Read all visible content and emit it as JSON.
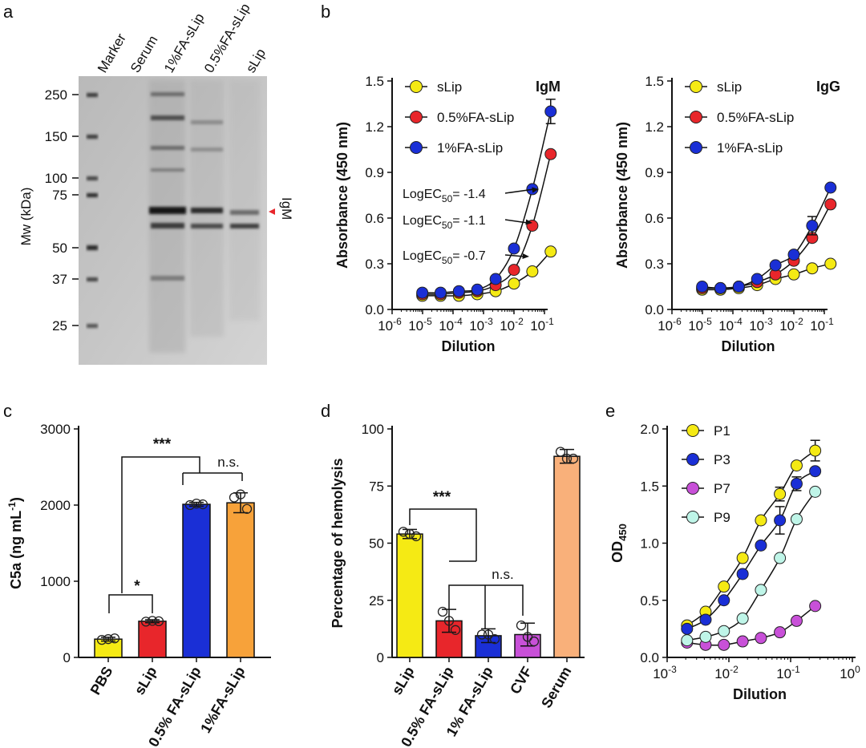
{
  "panel_labels": [
    "a",
    "b",
    "c",
    "d",
    "e"
  ],
  "chart_data": [
    {
      "panel": "a",
      "type": "gel",
      "lanes": [
        "Marker",
        "Serum",
        "1%FA-sLip",
        "0.5%FA-sLip",
        "sLip"
      ],
      "ylabel": "Mw (kDa)",
      "ticks": [
        250,
        150,
        100,
        75,
        50,
        37,
        25
      ],
      "annotation": "IgM",
      "band_kda": 69,
      "annotation_color": "#e8262b"
    },
    {
      "panel": "b-left",
      "type": "line",
      "xscale": "log",
      "xlabel": "Dilution",
      "ylabel": "Absorbance (450 nm)",
      "ylim": [
        0.0,
        1.5
      ],
      "yticks": [
        "0.0",
        "0.3",
        "0.6",
        "0.9",
        "1.2",
        "1.5"
      ],
      "xticks": [
        {
          "v": 1e-06,
          "base": "10",
          "exp": "-6"
        },
        {
          "v": 1e-05,
          "base": "10",
          "exp": "-5"
        },
        {
          "v": 0.0001,
          "base": "10",
          "exp": "-4"
        },
        {
          "v": 0.001,
          "base": "10",
          "exp": "-3"
        },
        {
          "v": 0.01,
          "base": "10",
          "exp": "-2"
        },
        {
          "v": 0.1,
          "base": "10",
          "exp": "-1"
        }
      ],
      "xlim": [
        1e-06,
        0.1
      ],
      "antibody": "IgM",
      "x": [
        9.8e-06,
        3.9e-05,
        0.000156,
        0.000625,
        0.0025,
        0.01,
        0.04,
        0.16
      ],
      "series": [
        {
          "name": "sLip",
          "color": "#f5ea14",
          "values": [
            0.09,
            0.09,
            0.09,
            0.1,
            0.12,
            0.17,
            0.25,
            0.38
          ]
        },
        {
          "name": "0.5%FA-sLip",
          "color": "#e8262b",
          "values": [
            0.1,
            0.1,
            0.11,
            0.12,
            0.16,
            0.26,
            0.55,
            1.02
          ]
        },
        {
          "name": "1%FA-sLip",
          "color": "#1a2fd6",
          "values": [
            0.11,
            0.11,
            0.12,
            0.13,
            0.2,
            0.4,
            0.79,
            1.3
          ],
          "err": [
            0,
            0,
            0,
            0,
            0,
            0,
            0,
            0.08
          ]
        }
      ],
      "annotations": [
        {
          "prefix": "LogEC",
          "sub": "50",
          "suffix": "= -1.4"
        },
        {
          "prefix": "LogEC",
          "sub": "50",
          "suffix": "= -1.1"
        },
        {
          "prefix": "LogEC",
          "sub": "50",
          "suffix": "= -0.7"
        }
      ]
    },
    {
      "panel": "b-right",
      "type": "line",
      "xscale": "log",
      "xlabel": "Dilution",
      "ylabel": "Absorbance (450 nm)",
      "ylim": [
        0.0,
        1.5
      ],
      "yticks": [
        "0.0",
        "0.3",
        "0.6",
        "0.9",
        "1.2",
        "1.5"
      ],
      "xticks": [
        {
          "v": 1e-06,
          "base": "10",
          "exp": "-6"
        },
        {
          "v": 1e-05,
          "base": "10",
          "exp": "-5"
        },
        {
          "v": 0.0001,
          "base": "10",
          "exp": "-4"
        },
        {
          "v": 0.001,
          "base": "10",
          "exp": "-3"
        },
        {
          "v": 0.01,
          "base": "10",
          "exp": "-2"
        },
        {
          "v": 0.1,
          "base": "10",
          "exp": "-1"
        }
      ],
      "xlim": [
        1e-06,
        0.1
      ],
      "antibody": "IgG",
      "x": [
        9.8e-06,
        3.9e-05,
        0.000156,
        0.000625,
        0.0025,
        0.01,
        0.04,
        0.16
      ],
      "series": [
        {
          "name": "sLip",
          "color": "#f5ea14",
          "values": [
            0.13,
            0.13,
            0.14,
            0.16,
            0.2,
            0.23,
            0.27,
            0.3
          ]
        },
        {
          "name": "0.5%FA-sLip",
          "color": "#e8262b",
          "values": [
            0.14,
            0.14,
            0.15,
            0.18,
            0.23,
            0.32,
            0.47,
            0.69
          ]
        },
        {
          "name": "1%FA-sLip",
          "color": "#1a2fd6",
          "values": [
            0.15,
            0.14,
            0.15,
            0.2,
            0.29,
            0.36,
            0.55,
            0.8
          ],
          "err": [
            0,
            0,
            0,
            0,
            0,
            0,
            0.06,
            0
          ]
        }
      ]
    },
    {
      "panel": "c",
      "type": "bar",
      "ylabel": "C5a (ng mL",
      "ylabel_sup": "-1",
      "ylabel_end": ")",
      "ylim": [
        0,
        3000
      ],
      "yticks": [
        "0",
        "1000",
        "2000",
        "3000"
      ],
      "categories": [
        "PBS",
        "sLip",
        "0.5% FA-sLip",
        "1%FA-sLip"
      ],
      "colors": [
        "#f5ea14",
        "#e8262b",
        "#1a2fd6",
        "#f7a23a"
      ],
      "values": [
        240,
        475,
        2010,
        2030
      ],
      "err": [
        25,
        20,
        25,
        130
      ],
      "points": [
        [
          230,
          250,
          240
        ],
        [
          470,
          475,
          480
        ],
        [
          2000,
          2010,
          2020
        ],
        [
          2100,
          1950,
          2140
        ]
      ],
      "significance": [
        {
          "label": "***"
        },
        {
          "label": "n.s."
        },
        {
          "label": "*"
        }
      ]
    },
    {
      "panel": "d",
      "type": "bar",
      "ylabel": "Percentage of hemolysis",
      "ylim": [
        0,
        100
      ],
      "yticks": [
        "0",
        "25",
        "50",
        "75",
        "100"
      ],
      "categories": [
        "sLip",
        "0.5% FA-sLip",
        "1% FA-sLip",
        "CVF",
        "Serum"
      ],
      "colors": [
        "#f5ea14",
        "#e8262b",
        "#1a2fd6",
        "#c850d8",
        "#f9b07a"
      ],
      "values": [
        54,
        16,
        9.5,
        10,
        88
      ],
      "err": [
        2,
        5,
        3,
        5,
        3
      ],
      "points": [
        [
          55,
          53,
          54
        ],
        [
          20,
          12,
          16
        ],
        [
          10,
          8,
          10
        ],
        [
          14,
          7,
          9
        ],
        [
          90,
          87,
          87
        ]
      ],
      "significance": [
        {
          "label": "***"
        },
        {
          "label": "n.s."
        }
      ]
    },
    {
      "panel": "e",
      "type": "line",
      "xscale": "log",
      "xlabel": "Dilution",
      "ylabel": "OD",
      "ylabel_sub": "450",
      "ylim": [
        0.0,
        2.0
      ],
      "yticks": [
        "0.0",
        "0.5",
        "1.0",
        "1.5",
        "2.0"
      ],
      "xticks": [
        {
          "v": 0.001,
          "base": "10",
          "exp": "-3"
        },
        {
          "v": 0.01,
          "base": "10",
          "exp": "-2"
        },
        {
          "v": 0.1,
          "base": "10",
          "exp": "-1"
        },
        {
          "v": 1,
          "base": "10",
          "exp": "0"
        }
      ],
      "xlim": [
        0.001,
        1
      ],
      "x": [
        0.0021,
        0.0042,
        0.0083,
        0.0167,
        0.033,
        0.067,
        0.125,
        0.25
      ],
      "series": [
        {
          "name": "P1",
          "color": "#f5ea14",
          "values": [
            0.28,
            0.4,
            0.62,
            0.87,
            1.2,
            1.43,
            1.68,
            1.81
          ],
          "err": [
            0,
            0,
            0,
            0,
            0,
            0.06,
            0,
            0.09
          ]
        },
        {
          "name": "P3",
          "color": "#1a2fd6",
          "values": [
            0.25,
            0.33,
            0.5,
            0.73,
            0.98,
            1.2,
            1.52,
            1.63
          ],
          "err": [
            0,
            0,
            0,
            0,
            0,
            0.12,
            0.06,
            0
          ]
        },
        {
          "name": "P7",
          "color": "#c850d8",
          "values": [
            0.13,
            0.11,
            0.11,
            0.14,
            0.17,
            0.22,
            0.32,
            0.45
          ]
        },
        {
          "name": "P9",
          "color": "#bff5e8",
          "values": [
            0.15,
            0.18,
            0.23,
            0.34,
            0.59,
            0.87,
            1.21,
            1.45
          ]
        }
      ]
    }
  ]
}
